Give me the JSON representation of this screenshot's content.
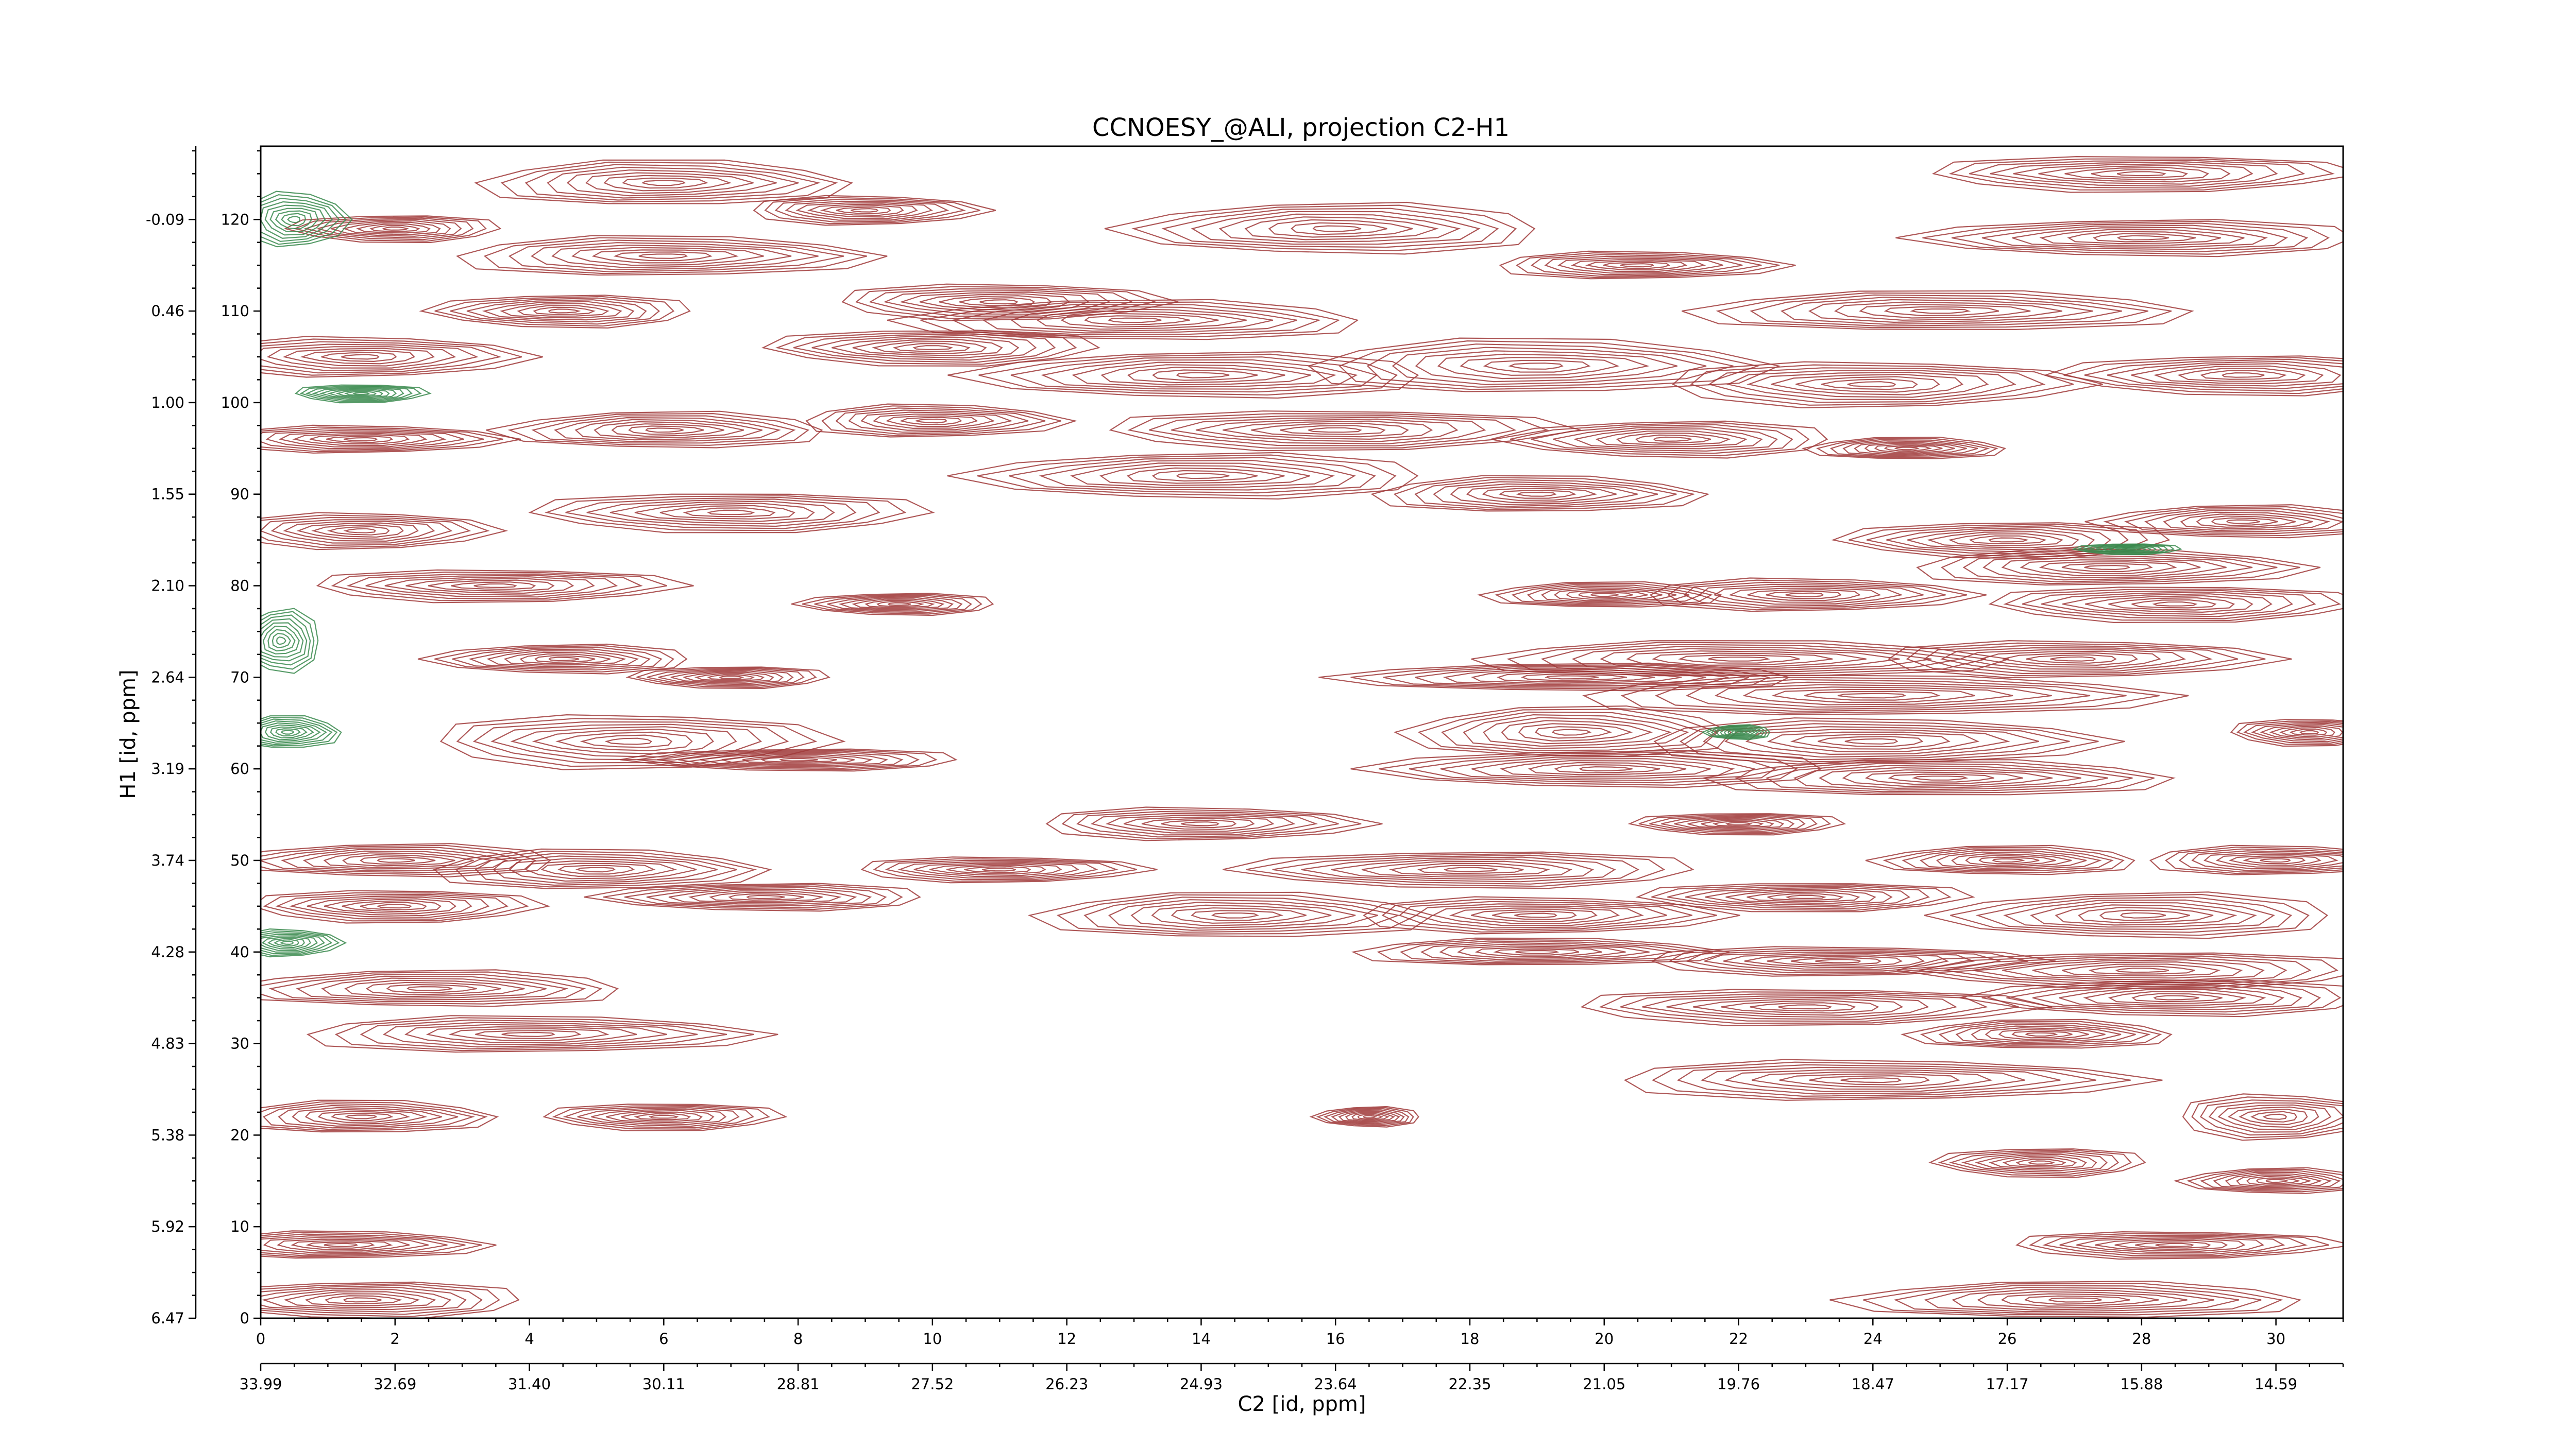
{
  "chart_data": {
    "type": "contour",
    "title": "CCNOESY_@ALI, projection C2-H1",
    "xlabel": "C2 [id, ppm]",
    "ylabel": "H1 [id, ppm]",
    "xlim": [
      0,
      31
    ],
    "ylim": [
      0,
      128
    ],
    "x_ticks": [
      0,
      2,
      4,
      6,
      8,
      10,
      12,
      14,
      16,
      18,
      20,
      22,
      24,
      26,
      28,
      30
    ],
    "x_ppm_ticks": [
      "33.99",
      "32.69",
      "31.40",
      "30.11",
      "28.81",
      "27.52",
      "26.23",
      "24.93",
      "23.64",
      "22.35",
      "21.05",
      "19.76",
      "18.47",
      "17.17",
      "15.88",
      "14.59"
    ],
    "y_ticks": [
      0,
      10,
      20,
      30,
      40,
      50,
      60,
      70,
      80,
      90,
      100,
      110,
      120
    ],
    "y_ppm_ticks": [
      "6.47",
      "5.92",
      "5.38",
      "4.83",
      "4.28",
      "3.74",
      "3.19",
      "2.64",
      "2.10",
      "1.55",
      "1.00",
      "0.46",
      "-0.09"
    ],
    "colors": {
      "positive": "#a03a3a",
      "negative": "#3a8a4e"
    },
    "peaks": [
      {
        "x": 6,
        "y": 124,
        "rx": 2.8,
        "ry": 2.5,
        "sign": 1
      },
      {
        "x": 9,
        "y": 121,
        "rx": 1.8,
        "ry": 1.6,
        "sign": 1
      },
      {
        "x": 2,
        "y": 119,
        "rx": 1.6,
        "ry": 1.5,
        "sign": 1
      },
      {
        "x": 16,
        "y": 119,
        "rx": 3.2,
        "ry": 2.8,
        "sign": 1
      },
      {
        "x": 6,
        "y": 116,
        "rx": 3.2,
        "ry": 2.2,
        "sign": 1
      },
      {
        "x": 11,
        "y": 111,
        "rx": 2.5,
        "ry": 2.0,
        "sign": 1
      },
      {
        "x": 4.5,
        "y": 110,
        "rx": 2.0,
        "ry": 1.8,
        "sign": 1
      },
      {
        "x": 13,
        "y": 109,
        "rx": 3.5,
        "ry": 2.2,
        "sign": 1
      },
      {
        "x": 20.5,
        "y": 115,
        "rx": 2.2,
        "ry": 1.5,
        "sign": 1
      },
      {
        "x": 28,
        "y": 125,
        "rx": 3.2,
        "ry": 2.0,
        "sign": 1
      },
      {
        "x": 28,
        "y": 118,
        "rx": 3.4,
        "ry": 2.0,
        "sign": 1
      },
      {
        "x": 25,
        "y": 110,
        "rx": 3.8,
        "ry": 2.2,
        "sign": 1
      },
      {
        "x": 1.5,
        "y": 105,
        "rx": 2.5,
        "ry": 2.2,
        "sign": 1
      },
      {
        "x": 10,
        "y": 106,
        "rx": 2.5,
        "ry": 2.0,
        "sign": 1
      },
      {
        "x": 14,
        "y": 103,
        "rx": 3.5,
        "ry": 2.5,
        "sign": 1
      },
      {
        "x": 19,
        "y": 104,
        "rx": 3.5,
        "ry": 3.0,
        "sign": 1
      },
      {
        "x": 24,
        "y": 102,
        "rx": 3.2,
        "ry": 2.5,
        "sign": 1
      },
      {
        "x": 29.5,
        "y": 103,
        "rx": 2.8,
        "ry": 2.2,
        "sign": 1
      },
      {
        "x": 6,
        "y": 97,
        "rx": 2.5,
        "ry": 2.0,
        "sign": 1
      },
      {
        "x": 10,
        "y": 98,
        "rx": 2.0,
        "ry": 1.8,
        "sign": 1
      },
      {
        "x": 16,
        "y": 97,
        "rx": 3.5,
        "ry": 2.2,
        "sign": 1
      },
      {
        "x": 21,
        "y": 96,
        "rx": 2.5,
        "ry": 2.0,
        "sign": 1
      },
      {
        "x": 24.5,
        "y": 95,
        "rx": 1.5,
        "ry": 1.2,
        "sign": 1
      },
      {
        "x": 1.5,
        "y": 96,
        "rx": 2.2,
        "ry": 1.5,
        "sign": 1
      },
      {
        "x": 7,
        "y": 88,
        "rx": 3.0,
        "ry": 2.2,
        "sign": 1
      },
      {
        "x": 14,
        "y": 92,
        "rx": 3.5,
        "ry": 2.5,
        "sign": 1
      },
      {
        "x": 19,
        "y": 90,
        "rx": 2.5,
        "ry": 2.0,
        "sign": 1
      },
      {
        "x": 1.5,
        "y": 86,
        "rx": 2.0,
        "ry": 2.0,
        "sign": 1
      },
      {
        "x": 26,
        "y": 85,
        "rx": 2.5,
        "ry": 2.0,
        "sign": 1
      },
      {
        "x": 29.5,
        "y": 87,
        "rx": 2.2,
        "ry": 1.8,
        "sign": 1
      },
      {
        "x": 27.5,
        "y": 82,
        "rx": 3.0,
        "ry": 2.0,
        "sign": 1
      },
      {
        "x": 3.5,
        "y": 80,
        "rx": 2.8,
        "ry": 1.8,
        "sign": 1
      },
      {
        "x": 9.5,
        "y": 78,
        "rx": 1.5,
        "ry": 1.2,
        "sign": 1
      },
      {
        "x": 20,
        "y": 79,
        "rx": 1.8,
        "ry": 1.4,
        "sign": 1
      },
      {
        "x": 23,
        "y": 79,
        "rx": 2.5,
        "ry": 1.8,
        "sign": 1
      },
      {
        "x": 28.5,
        "y": 78,
        "rx": 2.8,
        "ry": 2.0,
        "sign": 1
      },
      {
        "x": 4.5,
        "y": 72,
        "rx": 2.0,
        "ry": 1.6,
        "sign": 1
      },
      {
        "x": 22,
        "y": 72,
        "rx": 4.0,
        "ry": 2.0,
        "sign": 1
      },
      {
        "x": 27,
        "y": 72,
        "rx": 3.0,
        "ry": 2.0,
        "sign": 1
      },
      {
        "x": 7,
        "y": 70,
        "rx": 1.5,
        "ry": 1.2,
        "sign": 1
      },
      {
        "x": 19.5,
        "y": 70,
        "rx": 3.5,
        "ry": 1.5,
        "sign": 1
      },
      {
        "x": 24,
        "y": 68,
        "rx": 4.5,
        "ry": 2.2,
        "sign": 1
      },
      {
        "x": 5.5,
        "y": 63,
        "rx": 3.0,
        "ry": 3.0,
        "sign": 1
      },
      {
        "x": 8,
        "y": 61,
        "rx": 2.5,
        "ry": 1.2,
        "sign": 1
      },
      {
        "x": 19.5,
        "y": 64,
        "rx": 2.5,
        "ry": 2.8,
        "sign": 1
      },
      {
        "x": 24,
        "y": 63,
        "rx": 3.5,
        "ry": 2.5,
        "sign": 1
      },
      {
        "x": 30.5,
        "y": 64,
        "rx": 1.2,
        "ry": 1.5,
        "sign": 1
      },
      {
        "x": 20,
        "y": 60,
        "rx": 3.5,
        "ry": 2.0,
        "sign": 1
      },
      {
        "x": 25,
        "y": 59,
        "rx": 3.5,
        "ry": 2.0,
        "sign": 1
      },
      {
        "x": 14,
        "y": 54,
        "rx": 2.5,
        "ry": 1.8,
        "sign": 1
      },
      {
        "x": 22,
        "y": 54,
        "rx": 1.6,
        "ry": 1.2,
        "sign": 1
      },
      {
        "x": 2,
        "y": 50,
        "rx": 2.5,
        "ry": 1.8,
        "sign": 1
      },
      {
        "x": 5,
        "y": 49,
        "rx": 2.5,
        "ry": 2.2,
        "sign": 1
      },
      {
        "x": 11,
        "y": 49,
        "rx": 2.2,
        "ry": 1.4,
        "sign": 1
      },
      {
        "x": 18,
        "y": 49,
        "rx": 3.5,
        "ry": 2.0,
        "sign": 1
      },
      {
        "x": 26,
        "y": 50,
        "rx": 2.0,
        "ry": 1.6,
        "sign": 1
      },
      {
        "x": 30,
        "y": 50,
        "rx": 2.0,
        "ry": 1.6,
        "sign": 1
      },
      {
        "x": 2,
        "y": 45,
        "rx": 2.2,
        "ry": 1.8,
        "sign": 1
      },
      {
        "x": 7.5,
        "y": 46,
        "rx": 2.5,
        "ry": 1.5,
        "sign": 1
      },
      {
        "x": 14.5,
        "y": 44,
        "rx": 3.0,
        "ry": 2.5,
        "sign": 1
      },
      {
        "x": 19,
        "y": 44,
        "rx": 2.8,
        "ry": 2.0,
        "sign": 1
      },
      {
        "x": 23,
        "y": 46,
        "rx": 2.5,
        "ry": 1.6,
        "sign": 1
      },
      {
        "x": 28,
        "y": 44,
        "rx": 3.0,
        "ry": 2.5,
        "sign": 1
      },
      {
        "x": 19,
        "y": 40,
        "rx": 2.8,
        "ry": 1.5,
        "sign": 1
      },
      {
        "x": 23.5,
        "y": 39,
        "rx": 3.0,
        "ry": 1.6,
        "sign": 1
      },
      {
        "x": 28,
        "y": 38,
        "rx": 3.5,
        "ry": 2.0,
        "sign": 1
      },
      {
        "x": 2.5,
        "y": 36,
        "rx": 3.0,
        "ry": 2.0,
        "sign": 1
      },
      {
        "x": 4,
        "y": 31,
        "rx": 3.5,
        "ry": 2.0,
        "sign": 1
      },
      {
        "x": 23,
        "y": 34,
        "rx": 3.5,
        "ry": 2.0,
        "sign": 1
      },
      {
        "x": 28.5,
        "y": 35,
        "rx": 3.0,
        "ry": 2.0,
        "sign": 1
      },
      {
        "x": 26.5,
        "y": 31,
        "rx": 2.0,
        "ry": 1.6,
        "sign": 1
      },
      {
        "x": 24,
        "y": 26,
        "rx": 4.0,
        "ry": 2.2,
        "sign": 1
      },
      {
        "x": 6,
        "y": 22,
        "rx": 1.8,
        "ry": 1.5,
        "sign": 1
      },
      {
        "x": 16.5,
        "y": 22,
        "rx": 0.8,
        "ry": 1.1,
        "sign": 1
      },
      {
        "x": 1.5,
        "y": 22,
        "rx": 2.0,
        "ry": 1.8,
        "sign": 1
      },
      {
        "x": 30,
        "y": 22,
        "rx": 1.5,
        "ry": 2.5,
        "sign": 1
      },
      {
        "x": 26.5,
        "y": 17,
        "rx": 1.6,
        "ry": 1.6,
        "sign": 1
      },
      {
        "x": 30,
        "y": 15,
        "rx": 1.4,
        "ry": 1.4,
        "sign": 1
      },
      {
        "x": 1.2,
        "y": 8,
        "rx": 2.2,
        "ry": 1.5,
        "sign": 1
      },
      {
        "x": 28.5,
        "y": 8,
        "rx": 2.5,
        "ry": 1.5,
        "sign": 1
      },
      {
        "x": 1.5,
        "y": 2,
        "rx": 2.5,
        "ry": 2.0,
        "sign": 1
      },
      {
        "x": 27,
        "y": 2,
        "rx": 3.5,
        "ry": 2.0,
        "sign": 1
      },
      {
        "x": 0.5,
        "y": 120,
        "rx": 0.8,
        "ry": 3.0,
        "sign": -1
      },
      {
        "x": 1.5,
        "y": 101,
        "rx": 1.0,
        "ry": 1.0,
        "sign": -1
      },
      {
        "x": 0.3,
        "y": 74,
        "rx": 0.6,
        "ry": 3.5,
        "sign": -1
      },
      {
        "x": 0.4,
        "y": 64,
        "rx": 0.8,
        "ry": 1.8,
        "sign": -1
      },
      {
        "x": 0.4,
        "y": 41,
        "rx": 0.8,
        "ry": 1.5,
        "sign": -1
      },
      {
        "x": 27.8,
        "y": 84,
        "rx": 0.8,
        "ry": 0.6,
        "sign": -1
      },
      {
        "x": 22,
        "y": 64,
        "rx": 0.5,
        "ry": 0.8,
        "sign": -1
      }
    ]
  }
}
